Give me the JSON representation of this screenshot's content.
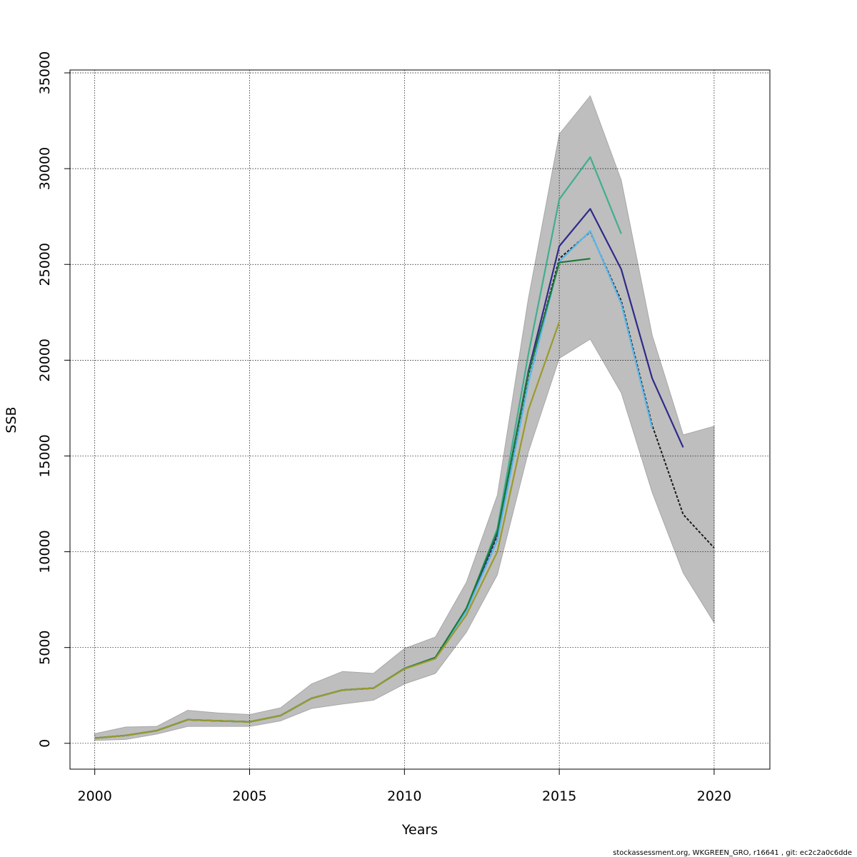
{
  "chart_data": {
    "type": "line",
    "xlabel": "Years",
    "ylabel": "SSB",
    "xlim": [
      1999.2,
      2021.8
    ],
    "ylim": [
      -1350,
      35150
    ],
    "x_ticks": [
      2000,
      2005,
      2010,
      2015,
      2020
    ],
    "y_ticks": [
      0,
      5000,
      10000,
      15000,
      20000,
      25000,
      30000,
      35000
    ],
    "grid": true,
    "footer": "stockassessment.org, WKGREEN_GRO, r16641 , git: ec2c2a0c6dde",
    "band": {
      "x": [
        2000,
        2001,
        2002,
        2003,
        2004,
        2005,
        2006,
        2007,
        2008,
        2009,
        2010,
        2011,
        2012,
        2013,
        2014,
        2015,
        2016,
        2017,
        2018,
        2019,
        2020
      ],
      "upper": [
        500,
        850,
        880,
        1720,
        1580,
        1500,
        1850,
        3100,
        3750,
        3650,
        4950,
        5550,
        8400,
        12950,
        23200,
        31800,
        33800,
        29400,
        21300,
        16100,
        16550
      ],
      "lower": [
        150,
        200,
        480,
        880,
        880,
        880,
        1170,
        1820,
        2050,
        2250,
        3100,
        3650,
        5800,
        8800,
        15200,
        20100,
        21100,
        18300,
        13100,
        8900,
        6300
      ]
    },
    "series": [
      {
        "color": "#1c1c1c",
        "dashed": true,
        "x": [
          2000,
          2001,
          2002,
          2003,
          2004,
          2005,
          2006,
          2007,
          2008,
          2009,
          2010,
          2011,
          2012,
          2013,
          2014,
          2015,
          2016,
          2017,
          2018,
          2019,
          2020
        ],
        "values": [
          270,
          410,
          660,
          1230,
          1170,
          1120,
          1450,
          2350,
          2780,
          2880,
          3900,
          4480,
          6950,
          10850,
          19200,
          25300,
          26700,
          23100,
          16600,
          11950,
          10200
        ]
      },
      {
        "color": "#41ae8e",
        "x": [
          2000,
          2001,
          2002,
          2003,
          2004,
          2005,
          2006,
          2007,
          2008,
          2009,
          2010,
          2011,
          2012,
          2013,
          2014,
          2015,
          2016,
          2017
        ],
        "values": [
          270,
          410,
          660,
          1230,
          1170,
          1120,
          1450,
          2350,
          2780,
          2880,
          3900,
          4480,
          7000,
          11200,
          20300,
          28400,
          30600,
          26600
        ]
      },
      {
        "color": "#2e2a8a",
        "x": [
          2000,
          2001,
          2002,
          2003,
          2004,
          2005,
          2006,
          2007,
          2008,
          2009,
          2010,
          2011,
          2012,
          2013,
          2014,
          2015,
          2016,
          2017,
          2018,
          2019
        ],
        "values": [
          270,
          410,
          660,
          1230,
          1170,
          1120,
          1450,
          2350,
          2780,
          2880,
          3900,
          4480,
          6980,
          10950,
          19400,
          25950,
          27900,
          24750,
          19050,
          15450
        ]
      },
      {
        "color": "#5ab6e8",
        "x": [
          2000,
          2001,
          2002,
          2003,
          2004,
          2005,
          2006,
          2007,
          2008,
          2009,
          2010,
          2011,
          2012,
          2013,
          2014,
          2015,
          2016,
          2017,
          2018
        ],
        "values": [
          270,
          410,
          660,
          1230,
          1170,
          1120,
          1450,
          2350,
          2780,
          2880,
          3900,
          4480,
          6900,
          10600,
          18800,
          25150,
          26750,
          22950,
          16450
        ]
      },
      {
        "color": "#1a7a3a",
        "x": [
          2000,
          2001,
          2002,
          2003,
          2004,
          2005,
          2006,
          2007,
          2008,
          2009,
          2010,
          2011,
          2012,
          2013,
          2014,
          2015,
          2016
        ],
        "values": [
          270,
          410,
          660,
          1230,
          1170,
          1120,
          1450,
          2350,
          2780,
          2880,
          3900,
          4480,
          7050,
          11050,
          19300,
          25100,
          25300
        ]
      },
      {
        "color": "#9a9a2e",
        "x": [
          2000,
          2001,
          2002,
          2003,
          2004,
          2005,
          2006,
          2007,
          2008,
          2009,
          2010,
          2011,
          2012,
          2013,
          2014,
          2015
        ],
        "values": [
          270,
          410,
          660,
          1230,
          1170,
          1120,
          1450,
          2350,
          2780,
          2880,
          3880,
          4420,
          6700,
          10000,
          17400,
          22000
        ]
      }
    ],
    "colors": {
      "band": "#bebebe",
      "grid": "#000000",
      "frame": "#000000"
    }
  }
}
